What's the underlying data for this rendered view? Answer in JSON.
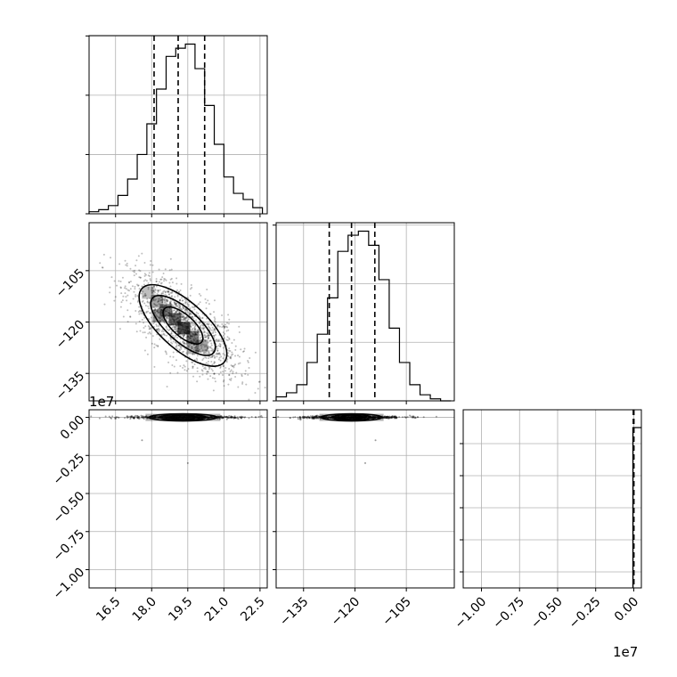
{
  "chart_data": {
    "type": "corner",
    "title": "",
    "offset_labels": [
      "1e7",
      "1e7"
    ],
    "panels": [
      {
        "id": "hist-p1",
        "type": "histogram",
        "x_range": [
          15.4,
          22.8
        ],
        "x_ticks": [
          "16.5",
          "18.0",
          "19.5",
          "21.0",
          "22.5"
        ],
        "x_tick_values": [
          16.5,
          18.0,
          19.5,
          21.0,
          22.5
        ],
        "bin_edges": [
          15.4,
          15.8,
          16.2,
          16.6,
          17.0,
          17.4,
          17.8,
          18.2,
          18.6,
          19.0,
          19.4,
          19.8,
          20.2,
          20.6,
          21.0,
          21.4,
          21.8,
          22.2,
          22.6
        ],
        "counts": [
          1,
          2,
          4,
          9,
          17,
          29,
          44,
          61,
          77,
          81,
          83,
          71,
          53,
          34,
          18,
          10,
          7,
          3
        ],
        "quantiles": [
          18.1,
          19.1,
          20.2
        ]
      },
      {
        "id": "scatter-p2-vs-p1",
        "type": "density",
        "x_range": [
          15.4,
          22.8
        ],
        "y_range": [
          -143,
          -91
        ],
        "y_ticks": [
          "−105",
          "−120",
          "−135"
        ],
        "y_tick_values": [
          -105,
          -120,
          -135
        ],
        "center": [
          19.3,
          -121
        ],
        "sd": [
          1.15,
          7.5
        ],
        "correlation": -0.72,
        "contour_levels": [
          "inner",
          "mid",
          "outer"
        ]
      },
      {
        "id": "hist-p2",
        "type": "histogram",
        "x_range": [
          -143,
          -91
        ],
        "x_ticks": [
          "−135",
          "−120",
          "−105"
        ],
        "x_tick_values": [
          -135,
          -120,
          -105
        ],
        "bin_edges": [
          -143,
          -140,
          -137,
          -134,
          -131,
          -128,
          -125,
          -122,
          -119,
          -116,
          -113,
          -110,
          -107,
          -104,
          -101,
          -98,
          -95,
          -92
        ],
        "counts": [
          2,
          4,
          8,
          19,
          33,
          51,
          74,
          82,
          84,
          77,
          60,
          36,
          19,
          8,
          3,
          1,
          0
        ],
        "quantiles": [
          -127.5,
          -121,
          -114.2
        ]
      },
      {
        "id": "scatter-p3-vs-p1",
        "type": "density",
        "x_range": [
          15.4,
          22.8
        ],
        "y_range": [
          -1.12,
          0.05
        ],
        "y_ticks": [
          "0.00",
          "−0.25",
          "−0.50",
          "−0.75",
          "−1.00"
        ],
        "y_tick_values": [
          0.0,
          -0.25,
          -0.5,
          -0.75,
          -1.0
        ],
        "center": [
          19.3,
          -0.002
        ],
        "outliers": [
          [
            17.6,
            -0.15
          ],
          [
            19.5,
            -0.3
          ]
        ]
      },
      {
        "id": "scatter-p3-vs-p2",
        "type": "density",
        "x_range": [
          -143,
          -91
        ],
        "y_range": [
          -1.12,
          0.05
        ],
        "center": [
          -121,
          -0.002
        ],
        "outliers": [
          [
            -114,
            -0.15
          ],
          [
            -117,
            -0.3
          ]
        ]
      },
      {
        "id": "hist-p3",
        "type": "histogram",
        "x_range": [
          -1.12,
          0.05
        ],
        "x_ticks": [
          "−1.00",
          "−0.75",
          "−0.50",
          "−0.25",
          "0.00"
        ],
        "x_tick_values": [
          -1.0,
          -0.75,
          -0.5,
          -0.25,
          0.0
        ],
        "peak_bin": [
          0.0,
          0.05
        ],
        "quantiles": [
          -0.003,
          -0.001,
          0.001
        ]
      }
    ]
  }
}
